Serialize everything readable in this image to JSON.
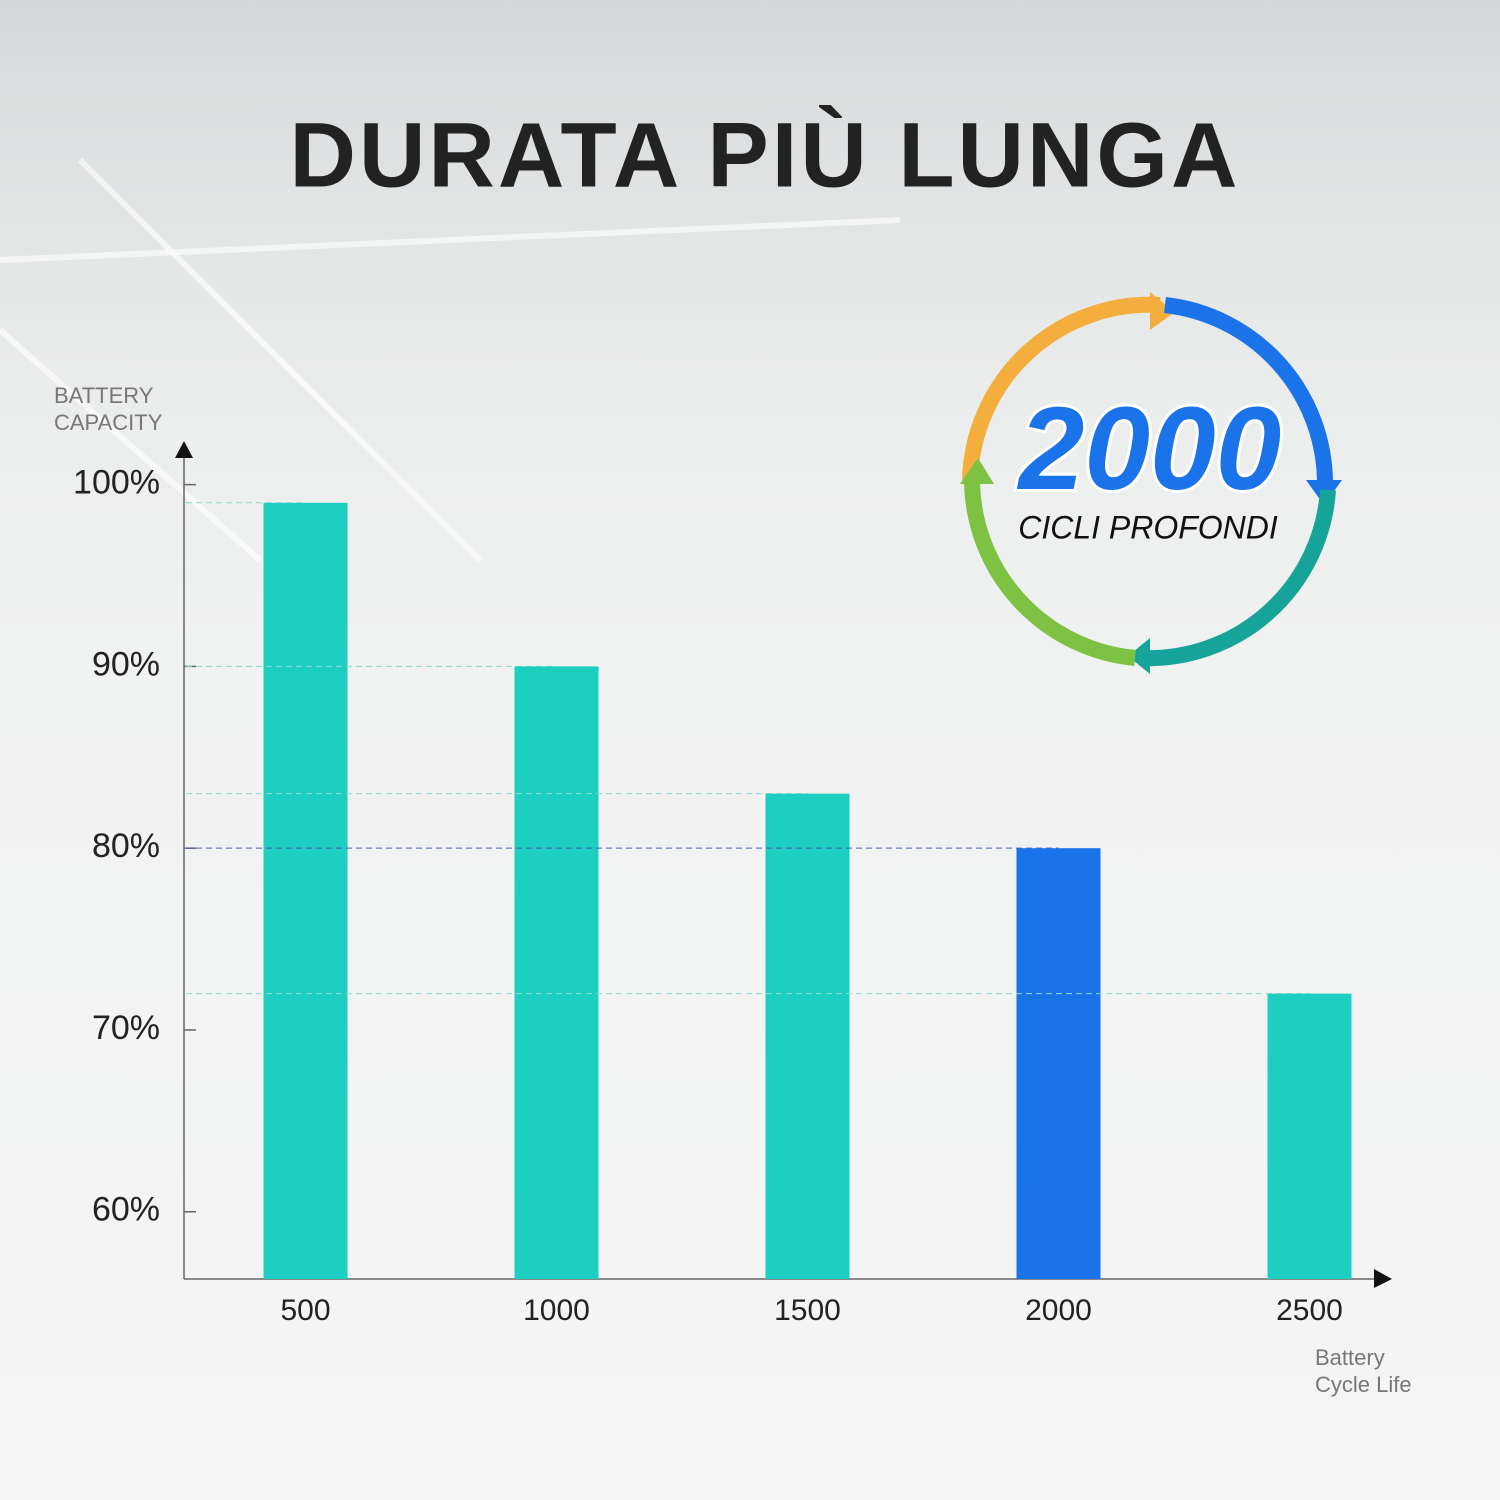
{
  "chart_data": {
    "type": "bar",
    "title": "DURATA PIÙ LUNGA",
    "y_label": "BATTERY CAPACITY",
    "x_label": "Battery Cycle Life",
    "categories": [
      "500",
      "1000",
      "1500",
      "2000",
      "2500"
    ],
    "values": [
      99,
      90,
      83,
      80,
      72
    ],
    "colors": [
      "#1dcfc0",
      "#1dcfc0",
      "#1dcfc0",
      "#1a73e8",
      "#1dcfc0"
    ],
    "ylim": [
      56.3,
      102.4
    ],
    "yticks": [
      {
        "value": 60,
        "label": "60%"
      },
      {
        "value": 70,
        "label": "70%"
      },
      {
        "value": 80,
        "label": "80%"
      },
      {
        "value": 90,
        "label": "90%"
      },
      {
        "value": 100,
        "label": "100%"
      }
    ],
    "annotations": [
      "2000",
      "CICLI PROFONDI"
    ]
  }
}
